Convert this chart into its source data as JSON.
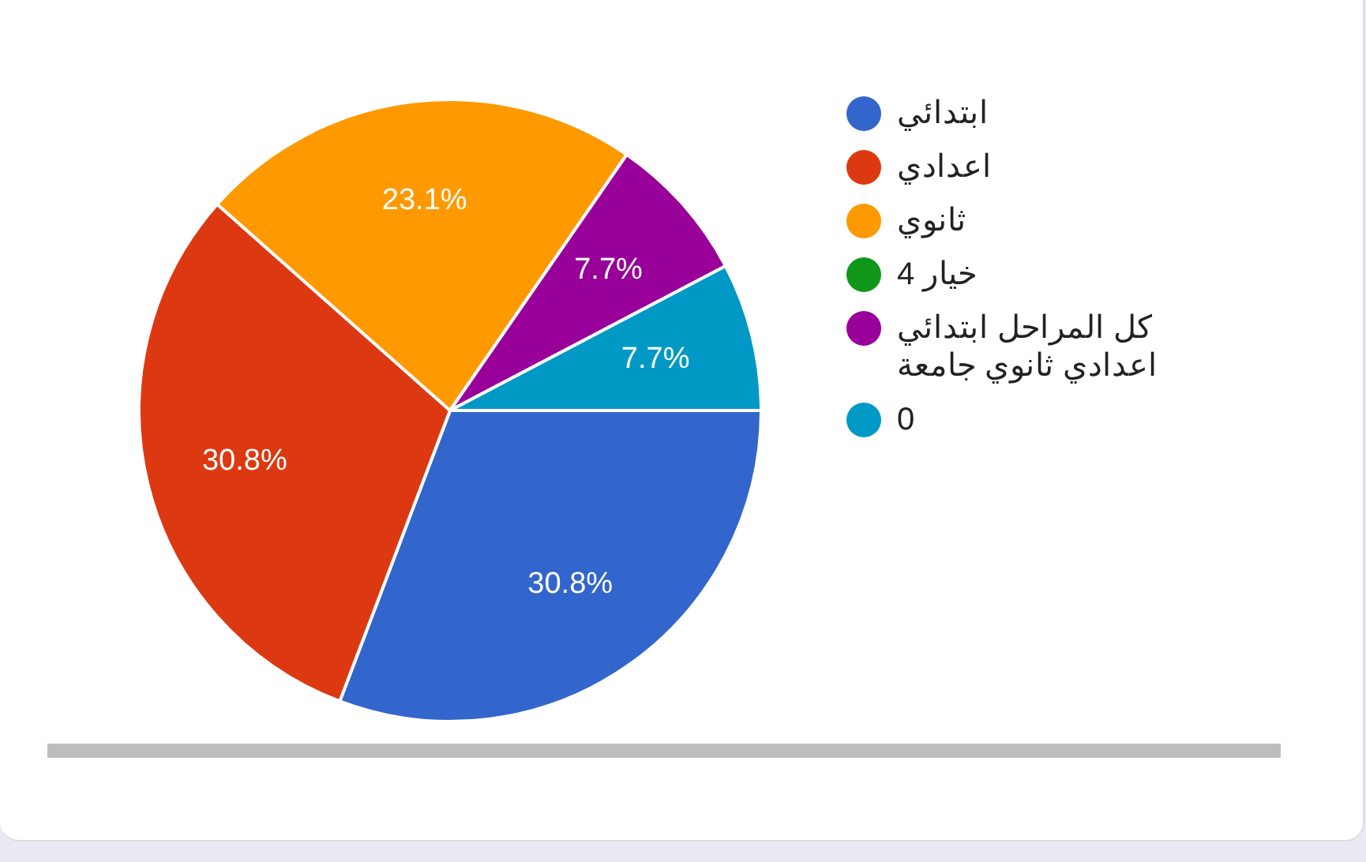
{
  "chart_data": {
    "type": "pie",
    "categories": [
      "ابتدائي",
      "اعدادي",
      "ثانوي",
      "خيار 4",
      "كل المراحل ابتدائي اعدادي ثانوي جامعة",
      "0"
    ],
    "values": [
      30.8,
      30.8,
      23.1,
      0,
      7.7,
      7.7
    ],
    "colors": [
      "#3366cc",
      "#dc3912",
      "#ff9900",
      "#109618",
      "#990099",
      "#0099c6"
    ],
    "value_labels": [
      "30.8%",
      "30.8%",
      "23.1%",
      null,
      "7.7%",
      "7.7%"
    ],
    "legend": "right"
  }
}
